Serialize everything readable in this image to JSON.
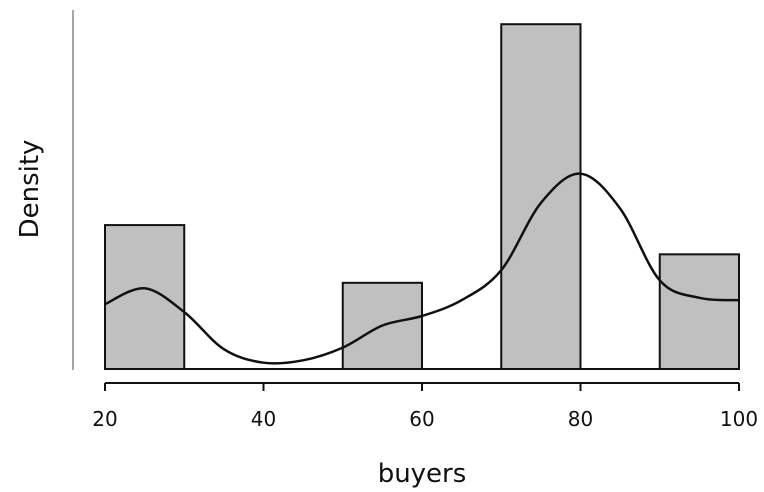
{
  "chart_data": {
    "type": "histogram",
    "xlabel": "buyers",
    "ylabel": "Density",
    "xlim": [
      20,
      100
    ],
    "ylim": [
      0,
      0.0435
    ],
    "xticks": [
      "20",
      "40",
      "60",
      "80",
      "100"
    ],
    "bins": [
      {
        "x0": 20,
        "x1": 30,
        "density": 0.0182
      },
      {
        "x0": 30,
        "x1": 40,
        "density": 0
      },
      {
        "x0": 40,
        "x1": 50,
        "density": 0
      },
      {
        "x0": 50,
        "x1": 60,
        "density": 0.0109
      },
      {
        "x0": 60,
        "x1": 70,
        "density": 0
      },
      {
        "x0": 70,
        "x1": 80,
        "density": 0.0436
      },
      {
        "x0": 80,
        "x1": 90,
        "density": 0
      },
      {
        "x0": 90,
        "x1": 100,
        "density": 0.0145
      }
    ],
    "density_curve": {
      "x": [
        20,
        25,
        30,
        35,
        40,
        45,
        50,
        55,
        60,
        65,
        70,
        75,
        80,
        85,
        90,
        95,
        100
      ],
      "y": [
        0.0082,
        0.0102,
        0.0072,
        0.0025,
        0.0008,
        0.0011,
        0.0027,
        0.0055,
        0.0067,
        0.0087,
        0.0125,
        0.021,
        0.0247,
        0.0203,
        0.0112,
        0.009,
        0.0087
      ]
    },
    "grid": false,
    "bar_fill": "#c0c0c0",
    "bar_stroke": "#111111",
    "curve_color": "#111111"
  }
}
